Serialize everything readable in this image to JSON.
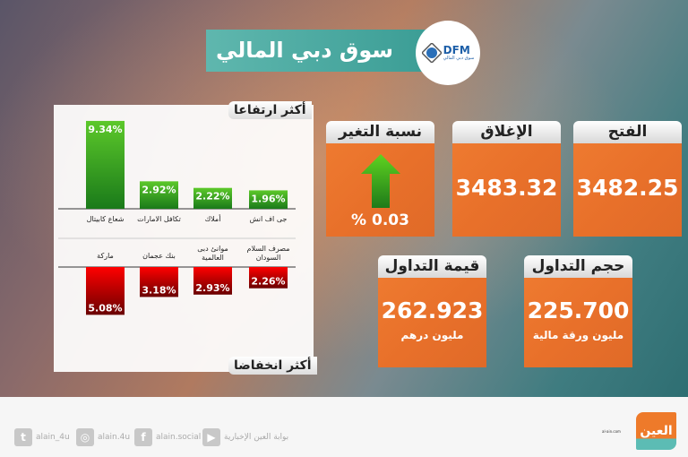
{
  "header": {
    "title": "سوق دبي المالي",
    "logo_text": "DFM",
    "logo_subtext": "سوق دبي المالي"
  },
  "gainers": {
    "label": "أكثر ارتفاعا"
  },
  "losers": {
    "label": "أكثر انخفاضا"
  },
  "chart_data": [
    {
      "type": "bar",
      "title": "أكثر ارتفاعا",
      "categories": [
        "شعاع كابيتال",
        "تكافل الامارات",
        "أملاك",
        "جى اف انش"
      ],
      "values": [
        9.34,
        2.92,
        2.22,
        1.96
      ],
      "labels": [
        "9.34%",
        "2.92%",
        "2.22%",
        "1.96%"
      ],
      "color": "#3aa51e"
    },
    {
      "type": "bar",
      "title": "أكثر انخفاضا",
      "categories": [
        "ماركة",
        "بنك عجمان",
        "موانئ دبى العالمية",
        "مصرف السلام السودان"
      ],
      "values": [
        5.08,
        3.18,
        2.93,
        2.26
      ],
      "labels": [
        "5.08%",
        "3.18%",
        "2.93%",
        "2.26%"
      ],
      "color": "#d40000"
    }
  ],
  "cards": {
    "change": {
      "label": "نسبة التغير",
      "value": "% 0.03",
      "direction": "up"
    },
    "close": {
      "label": "الإغلاق",
      "value": "3483.32"
    },
    "open": {
      "label": "الفتح",
      "value": "3482.25"
    },
    "traded_value": {
      "label": "قيمة التداول",
      "value": "262.923",
      "unit": "مليون درهم"
    },
    "traded_volume": {
      "label": "حجم التداول",
      "value": "225.700",
      "unit": "مليون ورقة مالية"
    }
  },
  "footer": {
    "social": [
      {
        "icon": "twitter-icon",
        "glyph": "t",
        "handle": "alain_4u"
      },
      {
        "icon": "instagram-icon",
        "glyph": "◎",
        "handle": "alain.4u"
      },
      {
        "icon": "facebook-icon",
        "glyph": "f",
        "handle": "alain.social"
      },
      {
        "icon": "youtube-icon",
        "glyph": "▶",
        "handle": "بوابة العين الإخبارية"
      }
    ],
    "site": "al-ain.com",
    "brand": "العين"
  },
  "colors": {
    "orange": "#e8702a",
    "teal": "#45a49b",
    "green": "#3aa51e",
    "red": "#d40000"
  }
}
